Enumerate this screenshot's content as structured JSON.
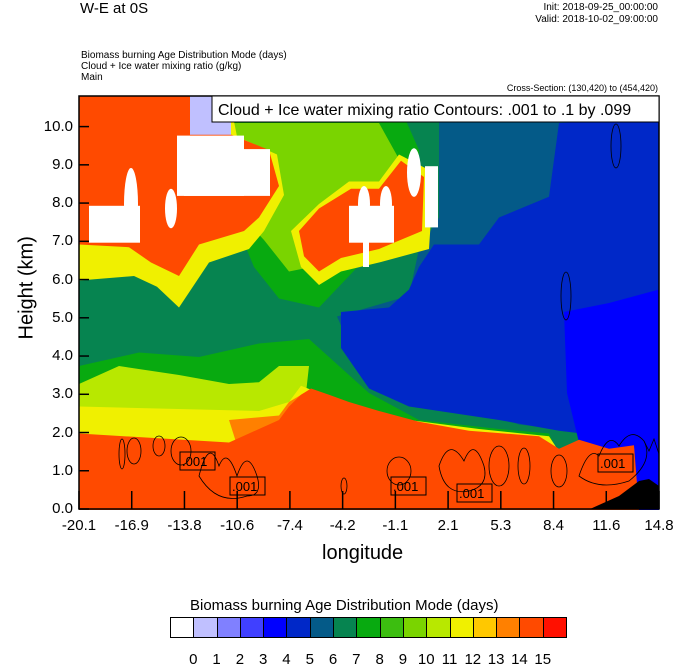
{
  "header": {
    "title": "W-E at 0S",
    "init": "Init: 2018-09-25_00:00:00",
    "valid": "Valid: 2018-10-02_09:00:00",
    "subtitles": [
      "Biomass burning Age Distribution Mode   (days)",
      "Cloud + Ice water mixing ratio   (g/kg)",
      "Main"
    ],
    "cross_section": "Cross-Section: (130,420) to (454,420)"
  },
  "chart_data": {
    "type": "heatmap",
    "title": "W-E at 0S",
    "xlabel": "longitude",
    "ylabel": "Height (km)",
    "xlim": [
      -20.1,
      14.8
    ],
    "ylim": [
      0,
      10.8
    ],
    "x_ticks": [
      "-20.1",
      "-16.9",
      "-13.8",
      "-10.6",
      "-7.4",
      "-4.2",
      "-1.1",
      "2.1",
      "5.3",
      "8.4",
      "11.6",
      "14.8"
    ],
    "y_ticks": [
      "0.0",
      "1.0",
      "2.0",
      "3.0",
      "4.0",
      "5.0",
      "6.0",
      "7.0",
      "8.0",
      "9.0",
      "10.0"
    ],
    "contour_info": "Cloud + Ice water mixing ratio Contours: .001 to .1 by .099",
    "contour_labels": [
      ".001",
      ".001",
      ".001",
      ".001",
      ".001"
    ],
    "colorbar": {
      "title": "Biomass burning Age Distribution Mode  (days)",
      "levels": [
        "0",
        "1",
        "2",
        "3",
        "4",
        "5",
        "6",
        "7",
        "8",
        "9",
        "10",
        "11",
        "12",
        "13",
        "14",
        "15"
      ],
      "colors": [
        "#ffffff",
        "#c0c0ff",
        "#8080ff",
        "#4040ff",
        "#0000ff",
        "#0028c8",
        "#045a88",
        "#068450",
        "#08aa10",
        "#3cbe10",
        "#7ad400",
        "#b8e800",
        "#f0f000",
        "#ffc800",
        "#ff8000",
        "#ff4a00",
        "#ff1000"
      ]
    }
  }
}
